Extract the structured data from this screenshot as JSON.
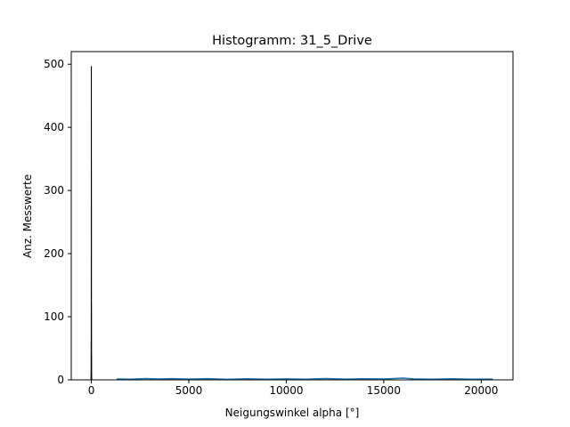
{
  "chart_data": {
    "type": "bar",
    "title": "Histogramm: 31_5_Drive",
    "xlabel": "Neigungswinkel alpha [°]",
    "ylabel": "Anz. Messwerte",
    "xlim": [
      -1030,
      21630
    ],
    "ylim": [
      0,
      520
    ],
    "xticks": [
      0,
      5000,
      10000,
      15000,
      20000
    ],
    "xtick_labels": [
      "0",
      "5000",
      "10000",
      "15000",
      "20000"
    ],
    "yticks": [
      0,
      100,
      200,
      300,
      400,
      500
    ],
    "ytick_labels": [
      "0",
      "100",
      "200",
      "300",
      "400",
      "500"
    ],
    "grid": false,
    "spike_series": {
      "color": "#000000",
      "x": [
        -15,
        -10,
        -6,
        -3,
        -1,
        0,
        1,
        3,
        6,
        10,
        15,
        20
      ],
      "y": [
        3,
        12,
        60,
        180,
        413,
        497,
        350,
        120,
        40,
        10,
        3,
        1
      ]
    },
    "tail_series": {
      "color": "#1f77b4",
      "x": [
        1300,
        2000,
        2800,
        3400,
        4200,
        5000,
        6000,
        7000,
        8000,
        9000,
        10000,
        11000,
        12000,
        13000,
        14000,
        15000,
        16000,
        16500,
        17500,
        18500,
        19500,
        20600
      ],
      "y": [
        1.5,
        1,
        2.2,
        1.4,
        2,
        1.2,
        2,
        0.8,
        1.8,
        1.1,
        1.6,
        1,
        2.1,
        1.3,
        1.8,
        1.5,
        2.8,
        1.6,
        1.1,
        1.7,
        1,
        1.3
      ]
    }
  }
}
